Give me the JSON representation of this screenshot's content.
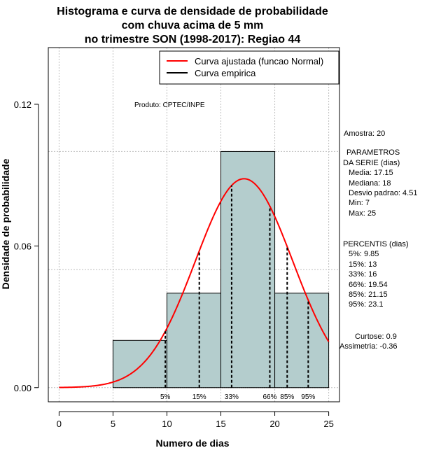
{
  "chart_data": {
    "type": "histogram",
    "title": [
      "Histograma e curva de densidade de probabilidade",
      "com chuva acima de 5 mm",
      "no trimestre SON (1998-2017): Regiao 44"
    ],
    "xlabel": "Numero de dias",
    "ylabel": "Densidade de probabilidade",
    "xlim": [
      -1,
      26
    ],
    "ylim": [
      -0.006,
      0.144
    ],
    "x_ticks": [
      0,
      5,
      10,
      15,
      20,
      25
    ],
    "x_tick_labels": [
      "0",
      "5",
      "10",
      "15",
      "20",
      "25"
    ],
    "y_ticks": [
      0.0,
      0.06,
      0.12
    ],
    "y_tick_labels": [
      "0.00",
      "0.06",
      "0.12"
    ],
    "grid": true,
    "bins": [
      {
        "from": 5,
        "to": 10,
        "density": 0.02
      },
      {
        "from": 10,
        "to": 15,
        "density": 0.04
      },
      {
        "from": 15,
        "to": 20,
        "density": 0.1
      },
      {
        "from": 20,
        "to": 25,
        "density": 0.04
      }
    ],
    "normal_fit": {
      "mean": 17.15,
      "sd": 4.51,
      "x_from": 0,
      "x_to": 25
    },
    "percentiles": [
      {
        "label": "5%",
        "x": 9.85
      },
      {
        "label": "15%",
        "x": 13
      },
      {
        "label": "33%",
        "x": 16
      },
      {
        "label": "66%",
        "x": 19.54
      },
      {
        "label": "85%",
        "x": 21.15
      },
      {
        "label": "95%",
        "x": 23.1
      }
    ],
    "legend": {
      "position": "top-right",
      "entries": [
        {
          "label": "Curva ajustada (funcao Normal)",
          "color": "#ff0000"
        },
        {
          "label": "Curva empirica",
          "color": "#000000"
        }
      ]
    },
    "colors": {
      "bars": "#b4cdcd",
      "curve": "#ff0000",
      "grid": "#bebebe"
    }
  },
  "annotations": {
    "produto": "Produto: CPTEC/INPE",
    "stats_lines": [
      "Amostra: 20",
      "PARAMETROS",
      "DA SERIE (dias)",
      "Media: 17.15",
      "Mediana: 18",
      "Desvio padrao: 4.51",
      "Min: 7",
      "Max: 25",
      "PERCENTIS (dias)",
      "5%: 9.85",
      "15%: 13",
      "33%: 16",
      "66%: 19.54",
      "85%: 21.15",
      "95%: 23.1",
      "Curtose: 0.9",
      "Assimetria: -0.36"
    ]
  }
}
